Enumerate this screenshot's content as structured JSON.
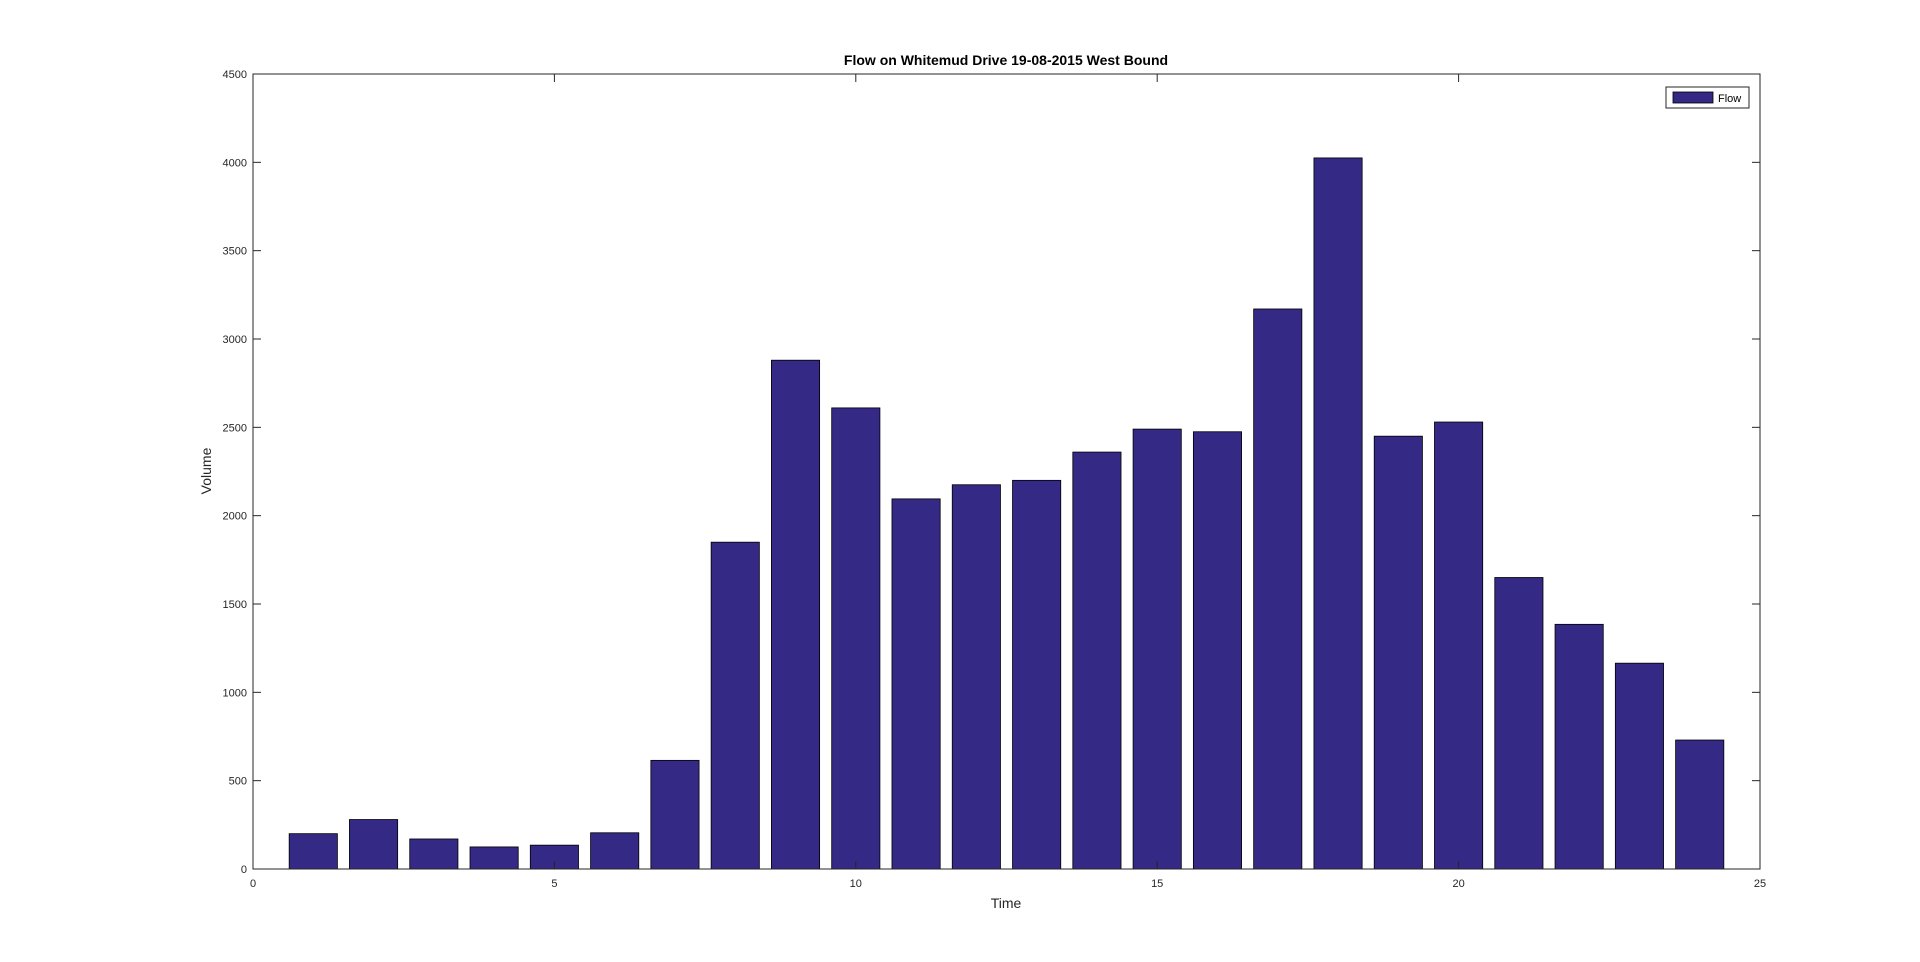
{
  "chart_data": {
    "type": "bar",
    "title": "Flow on Whitemud Drive 19-08-2015 West Bound",
    "xlabel": "Time",
    "ylabel": "Volume",
    "xlim": [
      0,
      25
    ],
    "ylim": [
      0,
      4500
    ],
    "xticks": [
      0,
      5,
      10,
      15,
      20,
      25
    ],
    "yticks": [
      0,
      500,
      1000,
      1500,
      2000,
      2500,
      3000,
      3500,
      4000,
      4500
    ],
    "grid": false,
    "legend": {
      "placement": "top-right",
      "entries": [
        "Flow"
      ]
    },
    "bar_color": "#342984",
    "series": [
      {
        "name": "Flow",
        "x": [
          1,
          2,
          3,
          4,
          5,
          6,
          7,
          8,
          9,
          10,
          11,
          12,
          13,
          14,
          15,
          16,
          17,
          18,
          19,
          20,
          21,
          22,
          23,
          24
        ],
        "values": [
          200,
          280,
          170,
          125,
          135,
          205,
          615,
          1850,
          2880,
          2610,
          2095,
          2175,
          2200,
          2360,
          2490,
          2475,
          3170,
          4025,
          2450,
          2530,
          1650,
          1385,
          1165,
          730
        ]
      }
    ]
  }
}
